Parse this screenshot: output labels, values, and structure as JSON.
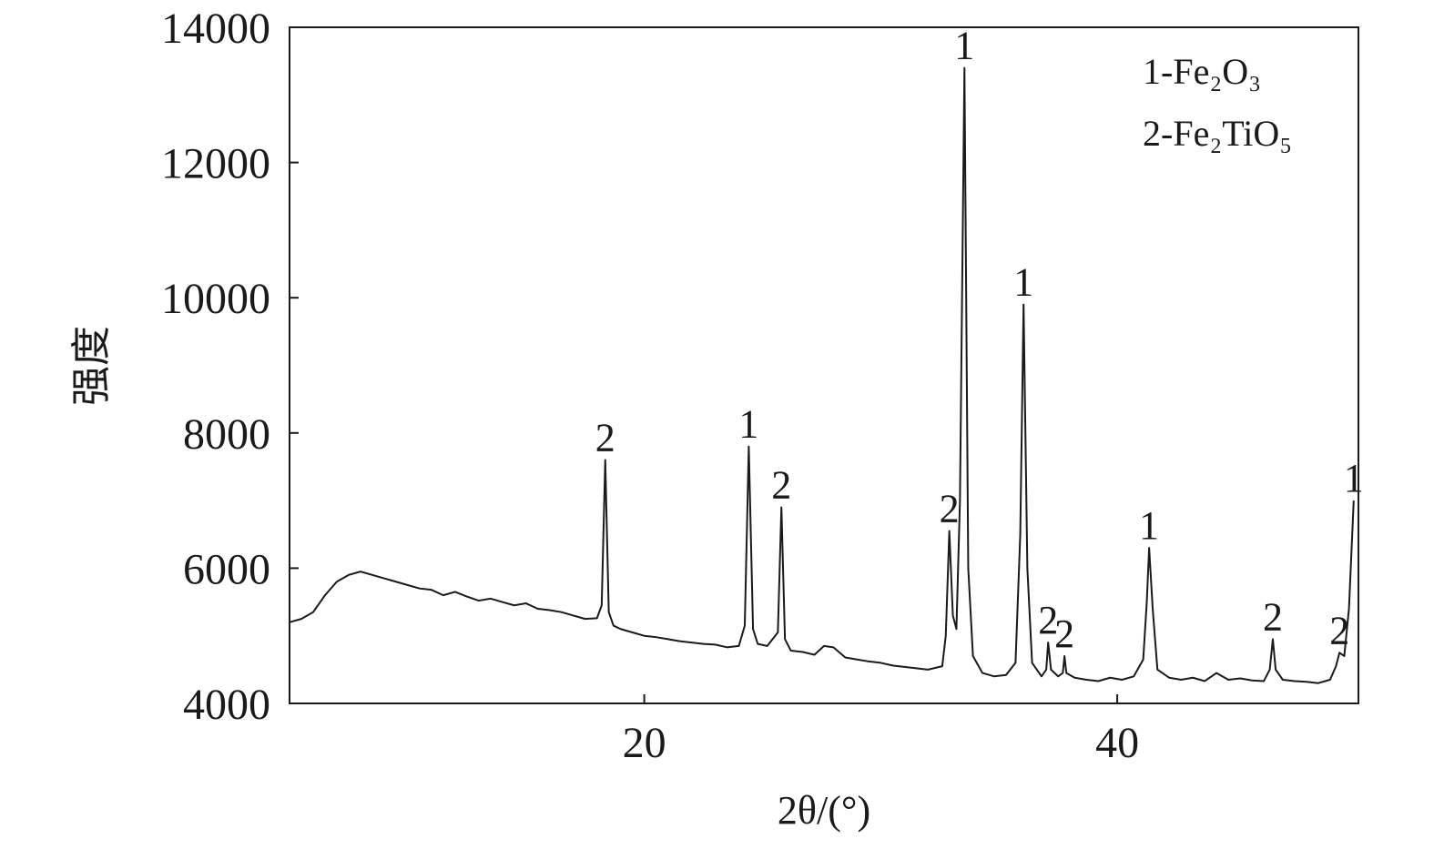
{
  "chart_data": {
    "type": "line",
    "xlabel": "2θ/(°)",
    "ylabel": "强度",
    "color": "#1a1a1a",
    "xlim": [
      5,
      50.2
    ],
    "ylim": [
      4000,
      14000
    ],
    "xticks": [
      20,
      40
    ],
    "yticks": [
      4000,
      6000,
      8000,
      10000,
      12000,
      14000
    ],
    "legend_text": [
      "1-Fe₂O₃",
      "2-Fe₂TiO₅"
    ],
    "x": [
      5,
      5.5,
      6,
      6.5,
      7,
      7.5,
      8,
      8.5,
      9,
      9.5,
      10,
      10.5,
      11,
      11.5,
      12,
      12.5,
      13,
      13.5,
      14,
      14.5,
      15,
      15.5,
      16,
      16.5,
      17,
      17.5,
      18,
      18.2,
      18.35,
      18.5,
      18.7,
      19,
      19.5,
      20,
      20.5,
      21,
      21.5,
      22,
      22.5,
      23,
      23.5,
      24,
      24.25,
      24.42,
      24.6,
      24.8,
      25.2,
      25.65,
      25.8,
      25.95,
      26.2,
      26.7,
      27.2,
      27.6,
      28,
      28.5,
      29,
      29.5,
      30,
      30.5,
      31,
      31.5,
      32,
      32.6,
      32.75,
      32.9,
      33.05,
      33.2,
      33.35,
      33.54,
      33.7,
      33.9,
      34.3,
      34.8,
      35.3,
      35.7,
      35.9,
      36.04,
      36.2,
      36.4,
      36.8,
      37.0,
      37.08,
      37.2,
      37.5,
      37.7,
      37.77,
      37.85,
      38.2,
      38.7,
      39.2,
      39.7,
      40.2,
      40.7,
      41.1,
      41.25,
      41.35,
      41.5,
      41.7,
      42.2,
      42.7,
      43.2,
      43.7,
      44.2,
      44.7,
      45.2,
      45.7,
      46.2,
      46.45,
      46.58,
      46.7,
      47,
      47.5,
      48,
      48.5,
      49,
      49.25,
      49.4,
      49.6,
      49.8,
      50
    ],
    "values": [
      5200,
      5250,
      5350,
      5600,
      5800,
      5900,
      5950,
      5900,
      5850,
      5800,
      5750,
      5700,
      5680,
      5600,
      5650,
      5580,
      5520,
      5550,
      5500,
      5450,
      5480,
      5400,
      5380,
      5350,
      5300,
      5250,
      5260,
      5450,
      7600,
      5350,
      5150,
      5100,
      5050,
      5000,
      4980,
      4950,
      4920,
      4900,
      4880,
      4870,
      4830,
      4850,
      5150,
      7800,
      5100,
      4880,
      4850,
      5050,
      6900,
      4950,
      4780,
      4760,
      4720,
      4850,
      4830,
      4680,
      4650,
      4620,
      4600,
      4560,
      4540,
      4520,
      4500,
      4550,
      5000,
      6550,
      5300,
      5100,
      7000,
      13400,
      6000,
      4700,
      4450,
      4400,
      4420,
      4600,
      6500,
      9900,
      6000,
      4600,
      4400,
      4500,
      4900,
      4500,
      4400,
      4450,
      4700,
      4450,
      4380,
      4350,
      4330,
      4380,
      4350,
      4400,
      4650,
      5500,
      6300,
      5400,
      4500,
      4380,
      4350,
      4380,
      4330,
      4450,
      4350,
      4370,
      4340,
      4330,
      4500,
      4950,
      4500,
      4350,
      4330,
      4320,
      4300,
      4350,
      4550,
      4750,
      4700,
      5400,
      7000
    ],
    "annotations": [
      {
        "text": "2",
        "x": 18.35,
        "y": 7600
      },
      {
        "text": "1",
        "x": 24.42,
        "y": 7800
      },
      {
        "text": "2",
        "x": 25.8,
        "y": 6900
      },
      {
        "text": "2",
        "x": 32.9,
        "y": 6550
      },
      {
        "text": "1",
        "x": 33.54,
        "y": 13400
      },
      {
        "text": "1",
        "x": 36.04,
        "y": 9900
      },
      {
        "text": "2",
        "x": 37.08,
        "y": 4900
      },
      {
        "text": "2",
        "x": 37.77,
        "y": 4700
      },
      {
        "text": "1",
        "x": 41.35,
        "y": 6300
      },
      {
        "text": "2",
        "x": 46.58,
        "y": 4950
      },
      {
        "text": "2",
        "x": 49.4,
        "y": 4750
      },
      {
        "text": "1",
        "x": 50,
        "y": 7000
      }
    ]
  }
}
